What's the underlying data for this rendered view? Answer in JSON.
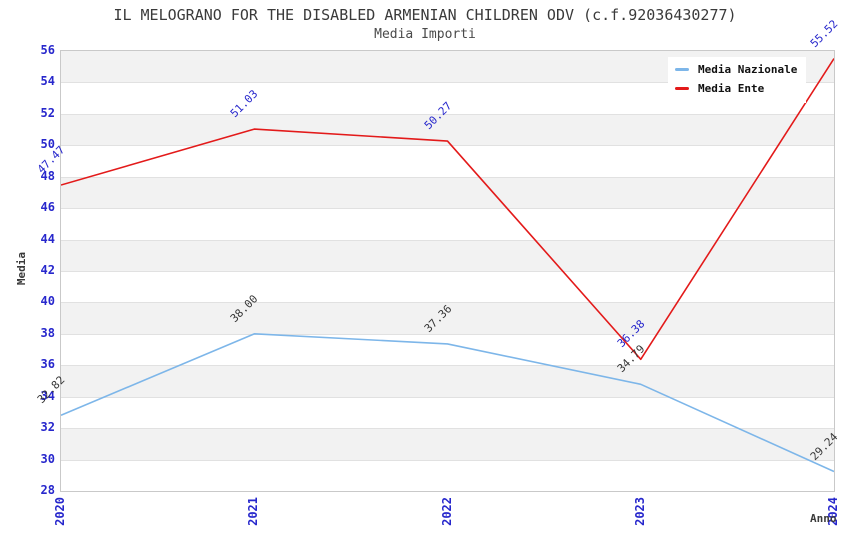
{
  "chart_data": {
    "type": "line",
    "title": "IL MELOGRANO FOR THE DISABLED ARMENIAN CHILDREN ODV (c.f.92036430277)",
    "subtitle": "Media Importi",
    "xlabel": "Anno",
    "ylabel": "Media",
    "categories": [
      "2020",
      "2021",
      "2022",
      "2023",
      "2024"
    ],
    "ylim": [
      28,
      56
    ],
    "ytick_step": 2,
    "grid": "horizontal gridlines with alternating shaded bands",
    "legend_position": "top-right",
    "series": [
      {
        "name": "Media Nazionale",
        "color": "#7db6e9",
        "label_color": "#383838",
        "values": [
          32.82,
          38.0,
          37.36,
          34.79,
          29.24
        ]
      },
      {
        "name": "Media Ente",
        "color": "#e31a1a",
        "label_color": "#2727cc",
        "values": [
          47.47,
          51.03,
          50.27,
          36.38,
          55.52
        ]
      }
    ],
    "colors": {
      "axis_tick": "#2727cc",
      "text": "#3a3a3a",
      "band": "#f2f2f2",
      "grid": "#e1e1e1",
      "plot_border": "#c9c9c9",
      "background": "#ffffff"
    }
  }
}
